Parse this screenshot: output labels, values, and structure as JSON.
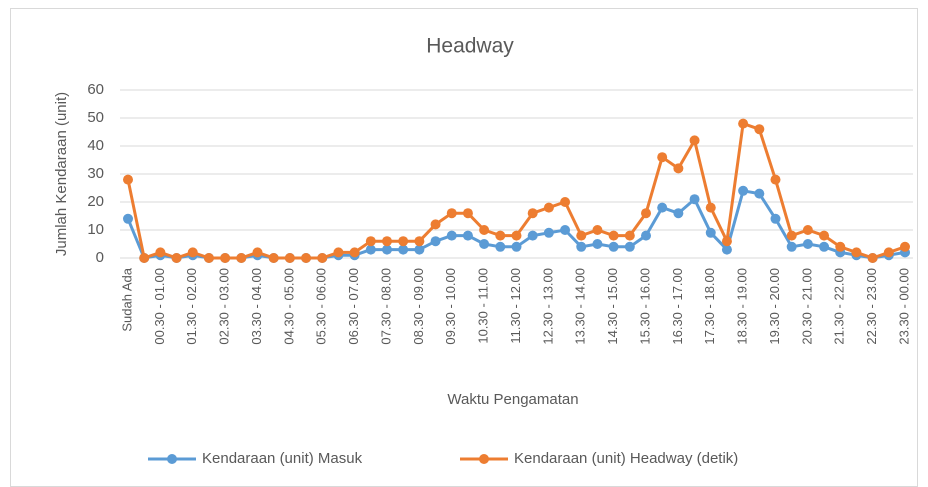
{
  "chart_data": {
    "type": "line",
    "title": "Headway",
    "x_label": "Waktu Pengamatan",
    "y_label": "Jumlah Kendaraan (unit)",
    "categories": [
      "Sudah Ada",
      null,
      "00.30 - 01.00",
      null,
      "01.30 - 02.00",
      null,
      "02.30 - 03.00",
      null,
      "03.30 - 04.00",
      null,
      "04.30 - 05.00",
      null,
      "05.30 - 06.00",
      null,
      "06.30 - 07.00",
      null,
      "07.30 - 08.00",
      null,
      "08.30 - 09.00",
      null,
      "09.30 - 10.00",
      null,
      "10.30 - 11.00",
      null,
      "11.30 - 12.00",
      null,
      "12.30 - 13.00",
      null,
      "13.30 - 14.00",
      null,
      "14.30 - 15.00",
      null,
      "15.30 - 16.00",
      null,
      "16.30 - 17.00",
      null,
      "17.30 - 18.00",
      null,
      "18.30 - 19.00",
      null,
      "19.30 - 20.00",
      null,
      "20.30 - 21.00",
      null,
      "21.30 - 22.00",
      null,
      "22.30 - 23.00",
      null,
      "23.30 - 00.00"
    ],
    "series": [
      {
        "name": "Kendaraan (unit) Masuk",
        "color": "#5b9bd5",
        "values": [
          14,
          0,
          1,
          0,
          1,
          0,
          0,
          0,
          1,
          0,
          0,
          0,
          0,
          1,
          1,
          3,
          3,
          3,
          3,
          6,
          8,
          8,
          5,
          4,
          4,
          8,
          9,
          10,
          4,
          5,
          4,
          4,
          8,
          18,
          16,
          21,
          9,
          3,
          24,
          23,
          14,
          4,
          5,
          4,
          2,
          1,
          0,
          1,
          2
        ]
      },
      {
        "name": "Kendaraan (unit) Headway (detik)",
        "color": "#ed7d31",
        "values": [
          28,
          0,
          2,
          0,
          2,
          0,
          0,
          0,
          2,
          0,
          0,
          0,
          0,
          2,
          2,
          6,
          6,
          6,
          6,
          12,
          16,
          16,
          10,
          8,
          8,
          16,
          18,
          20,
          8,
          10,
          8,
          8,
          16,
          36,
          32,
          42,
          18,
          6,
          48,
          46,
          28,
          8,
          10,
          8,
          4,
          2,
          0,
          2,
          4
        ]
      }
    ],
    "ylim": [
      0,
      60
    ],
    "yticks": [
      0,
      10,
      20,
      30,
      40,
      50,
      60
    ],
    "grid": true,
    "legend": "bottom"
  }
}
